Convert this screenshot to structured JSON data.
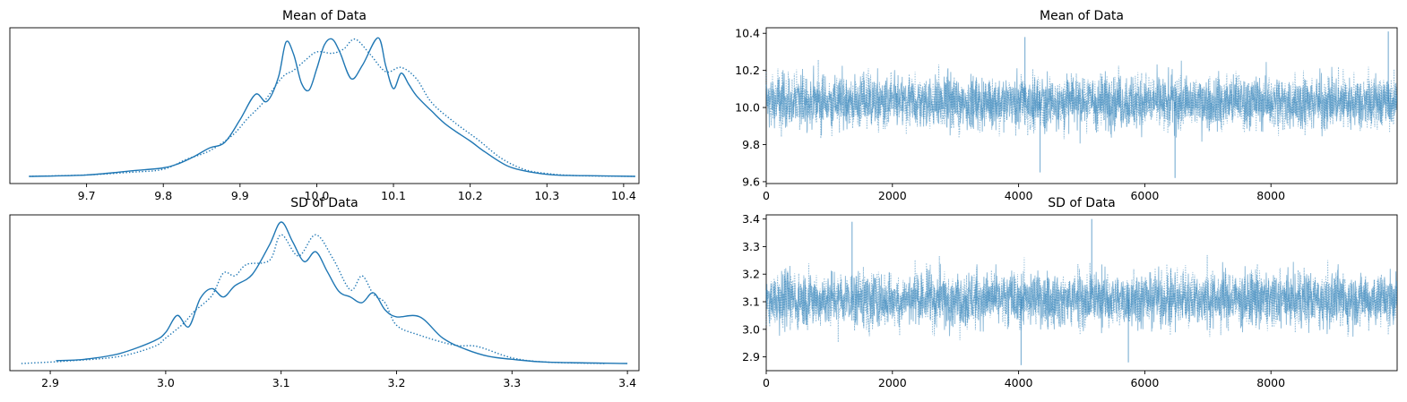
{
  "chart_data": [
    {
      "type": "line",
      "kind": "density",
      "title": "Mean of Data",
      "xlim": [
        9.6,
        10.42
      ],
      "xticks": [
        9.7,
        9.8,
        9.9,
        10.0,
        10.1,
        10.2,
        10.3,
        10.4
      ],
      "yticks_shown": false,
      "color": "#1f77b4",
      "series": [
        {
          "style": "solid",
          "x": [
            9.625,
            9.7,
            9.76,
            9.8,
            9.82,
            9.84,
            9.86,
            9.88,
            9.9,
            9.92,
            9.935,
            9.95,
            9.96,
            9.97,
            9.98,
            9.99,
            10.0,
            10.01,
            10.02,
            10.03,
            10.045,
            10.06,
            10.08,
            10.09,
            10.1,
            10.11,
            10.12,
            10.13,
            10.15,
            10.17,
            10.2,
            10.22,
            10.25,
            10.28,
            10.31,
            10.35,
            10.415
          ],
          "y": [
            0.0,
            0.01,
            0.04,
            0.06,
            0.09,
            0.14,
            0.2,
            0.24,
            0.4,
            0.58,
            0.53,
            0.7,
            0.95,
            0.86,
            0.66,
            0.61,
            0.76,
            0.93,
            0.97,
            0.88,
            0.69,
            0.79,
            0.98,
            0.78,
            0.62,
            0.73,
            0.65,
            0.57,
            0.46,
            0.36,
            0.25,
            0.17,
            0.07,
            0.03,
            0.01,
            0.005,
            0.0
          ]
        },
        {
          "style": "dotted",
          "x": [
            9.625,
            9.7,
            9.76,
            9.8,
            9.83,
            9.86,
            9.89,
            9.91,
            9.93,
            9.955,
            9.97,
            9.985,
            10.0,
            10.02,
            10.035,
            10.05,
            10.07,
            10.09,
            10.11,
            10.13,
            10.15,
            10.18,
            10.21,
            10.24,
            10.27,
            10.3,
            10.34,
            10.415
          ],
          "y": [
            0.0,
            0.01,
            0.03,
            0.05,
            0.12,
            0.18,
            0.29,
            0.41,
            0.52,
            0.7,
            0.75,
            0.82,
            0.88,
            0.87,
            0.9,
            0.97,
            0.86,
            0.74,
            0.77,
            0.69,
            0.52,
            0.38,
            0.26,
            0.13,
            0.05,
            0.02,
            0.005,
            0.0
          ]
        }
      ]
    },
    {
      "type": "line",
      "kind": "trace",
      "title": "Mean of Data",
      "xlim": [
        0,
        10000
      ],
      "ylim": [
        9.59,
        10.43
      ],
      "xticks": [
        0,
        2000,
        4000,
        6000,
        8000
      ],
      "yticks": [
        9.6,
        9.8,
        10.0,
        10.2,
        10.4
      ],
      "n_samples": 10000,
      "center": 10.03,
      "spread": 0.1,
      "extremes": [
        {
          "x": 9860,
          "y": 10.41
        },
        {
          "x": 4100,
          "y": 10.38
        },
        {
          "x": 6480,
          "y": 9.62
        },
        {
          "x": 4340,
          "y": 9.65
        }
      ],
      "color": "#1f77b4"
    },
    {
      "type": "line",
      "kind": "density",
      "title": "SD of Data",
      "xlim": [
        2.865,
        3.41
      ],
      "xticks": [
        2.9,
        3.0,
        3.1,
        3.2,
        3.3,
        3.4
      ],
      "yticks_shown": false,
      "color": "#1f77b4",
      "series": [
        {
          "style": "solid",
          "x": [
            2.905,
            2.93,
            2.96,
            2.99,
            3.0,
            3.01,
            3.02,
            3.03,
            3.04,
            3.05,
            3.06,
            3.075,
            3.09,
            3.1,
            3.11,
            3.12,
            3.13,
            3.14,
            3.15,
            3.16,
            3.17,
            3.18,
            3.19,
            3.2,
            3.22,
            3.24,
            3.26,
            3.28,
            3.3,
            3.33,
            3.4
          ],
          "y": [
            0.02,
            0.03,
            0.07,
            0.16,
            0.22,
            0.34,
            0.26,
            0.46,
            0.53,
            0.47,
            0.55,
            0.63,
            0.84,
            1.0,
            0.86,
            0.72,
            0.79,
            0.65,
            0.51,
            0.47,
            0.43,
            0.5,
            0.38,
            0.33,
            0.33,
            0.18,
            0.1,
            0.05,
            0.03,
            0.01,
            0.0
          ]
        },
        {
          "style": "dotted",
          "x": [
            2.875,
            2.92,
            2.96,
            2.99,
            3.0,
            3.015,
            3.025,
            3.04,
            3.05,
            3.06,
            3.07,
            3.09,
            3.1,
            3.115,
            3.13,
            3.145,
            3.16,
            3.17,
            3.18,
            3.19,
            3.2,
            3.22,
            3.25,
            3.27,
            3.3,
            3.33,
            3.38
          ],
          "y": [
            0.0,
            0.02,
            0.05,
            0.12,
            0.18,
            0.28,
            0.37,
            0.48,
            0.64,
            0.62,
            0.7,
            0.73,
            0.91,
            0.76,
            0.91,
            0.74,
            0.52,
            0.62,
            0.49,
            0.43,
            0.27,
            0.2,
            0.13,
            0.12,
            0.04,
            0.01,
            0.0
          ]
        }
      ]
    },
    {
      "type": "line",
      "kind": "trace",
      "title": "SD of Data",
      "xlim": [
        0,
        10000
      ],
      "ylim": [
        2.85,
        3.415
      ],
      "xticks": [
        0,
        2000,
        4000,
        6000,
        8000
      ],
      "yticks": [
        2.9,
        3.0,
        3.1,
        3.2,
        3.3,
        3.4
      ],
      "n_samples": 10000,
      "center": 3.11,
      "spread": 0.07,
      "extremes": [
        {
          "x": 5160,
          "y": 3.4
        },
        {
          "x": 1360,
          "y": 3.39
        },
        {
          "x": 4040,
          "y": 2.87
        },
        {
          "x": 5740,
          "y": 2.88
        }
      ],
      "color": "#1f77b4"
    }
  ]
}
